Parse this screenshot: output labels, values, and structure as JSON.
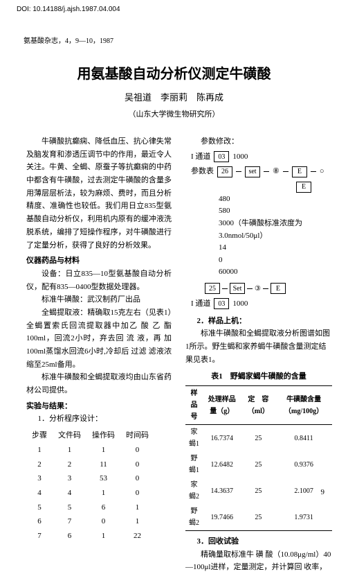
{
  "doi": "DOI: 10.14188/j.ajsh.1987.04.004",
  "journal": "氨基酸杂志，4，9—10，1987",
  "title": "用氨基酸自动分析仪测定牛磺酸",
  "authors": "吴祖道　李丽莉　陈再成",
  "affiliation": "（山东大学微生物研究所）",
  "left": {
    "p1": "牛磺酸抗癫痫、降低血压、抗心律失常及脑发育和渗透压调节中的作用，最近令人关注。牛黄、全蝎、原蚕子等抗癫痫的中药中都含有牛磺酸，过去测定牛磺酸的含量多用薄层层析法，较为麻烦、费时，而且分析精度、准确性也较低。我们用日立835型氨基酸自动分析仪，利用机内原有的缓冲液洗脱系统，编排了短操作程序，对牛磺酸进行了定量分析，获得了良好的分析效果。",
    "h1": "仪器药品与材料",
    "p2": "设备：日立835—10型氨基酸自动分析仪，配有835—0400型数据处理器。",
    "p3": "标准牛磺酸：武汉制药厂出品",
    "p4": "全蝎提取液：精确取15克左右（见表1）全蝎置索氏回流提取器中加乙 酸 乙 酯100ml，回流2小时，弃去回 流 液，再 加100ml蒸馏水回流6小时,冷却后 过滤 滤液浓缩至25ml备用。",
    "p5": "标准牛磺酸和全蝎提取液均由山东省药材公司提供。",
    "h2": "实验与结果：",
    "sub1": "1．分析程序设计：",
    "steps_header": [
      "步骤",
      "文件码",
      "操作码",
      "时间码"
    ],
    "steps": [
      [
        "1",
        "1",
        "1",
        "0"
      ],
      [
        "2",
        "2",
        "11",
        "0"
      ],
      [
        "3",
        "3",
        "53",
        "0"
      ],
      [
        "4",
        "4",
        "1",
        "0"
      ],
      [
        "5",
        "5",
        "6",
        "1"
      ],
      [
        "6",
        "7",
        "0",
        "1"
      ],
      [
        "7",
        "6",
        "1",
        "22"
      ]
    ]
  },
  "right": {
    "param_title": "参数修改：",
    "ch_label": "I 通道",
    "ch_val": "03",
    "ch_num": "1000",
    "tbl_label": "参数表",
    "tbl_val": "26",
    "set1": "set",
    "circ8": "⑧",
    "E": "E",
    "O": "○",
    "vals": [
      "480",
      "580",
      "3000（牛磺酸标准浓度为3.0nmol/50μl）",
      "14",
      "0",
      "60000"
    ],
    "box25": "25",
    "set2": "Set",
    "circ3": "③",
    "ch2_val": "03",
    "ch2_num": "1000",
    "sub2": "2．样品上机：",
    "p_sample": "标准牛磺酸和全蝎提取液分析图谱如图1所示。野生蝎和家养蝎牛磺酸含量测定结果见表1。",
    "table_title": "表1　野蝎家蝎牛磺酸的含量",
    "tbl_head": [
      "样品号",
      "处理样品量（g）",
      "定　容（ml）",
      "牛磺酸含量（mg/100g）"
    ],
    "tbl_rows": [
      [
        "家蝎1",
        "16.7374",
        "25",
        "0.8411"
      ],
      [
        "野蝎1",
        "12.6482",
        "25",
        "0.9376"
      ],
      [
        "家蝎2",
        "14.3637",
        "25",
        "2.1007"
      ],
      [
        "野蝎2",
        "19.7466",
        "25",
        "1.9731"
      ]
    ],
    "sub3": "3．回收试验",
    "p_recov": "精确量取标准牛 磺 酸（10.08μg/ml）40—100μl进样，定量测定，并计算回 收率，"
  },
  "page": "9"
}
